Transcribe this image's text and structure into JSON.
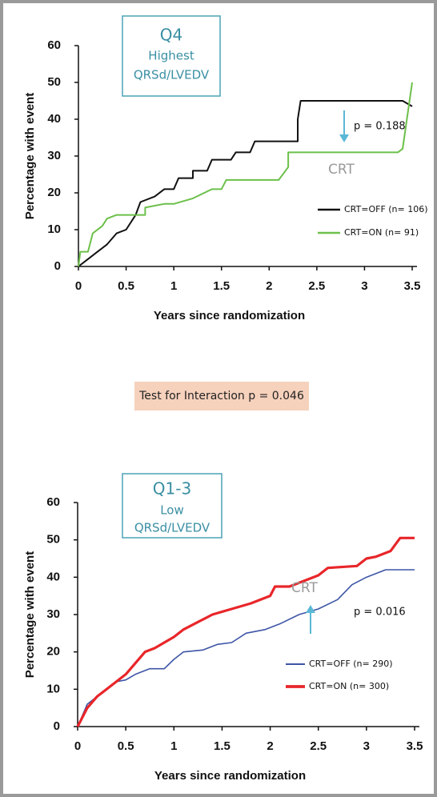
{
  "chart_data": [
    {
      "type": "line",
      "title_box": [
        "Q4",
        "Highest",
        "QRSd/LVEDV"
      ],
      "x_label": "Years since randomization",
      "y_label": "Percentage with event",
      "xlim": [
        0,
        3.5
      ],
      "ylim": [
        0,
        60
      ],
      "xticks": [
        0,
        0.5,
        1,
        1.5,
        2,
        2.5,
        3,
        3.5
      ],
      "yticks": [
        0,
        10,
        20,
        30,
        40,
        50,
        60
      ],
      "annotations": [
        "p = 0.188",
        "CRT"
      ],
      "series": [
        {
          "name": "CRT=OFF (n= 106)",
          "color": "#111111",
          "x": [
            0,
            0.1,
            0.2,
            0.3,
            0.4,
            0.5,
            0.6,
            0.65,
            0.8,
            0.9,
            1.0,
            1.05,
            1.2,
            1.2,
            1.35,
            1.4,
            1.6,
            1.65,
            1.8,
            1.85,
            2.3,
            2.3,
            2.33,
            3.4,
            3.5
          ],
          "values": [
            0,
            2,
            4,
            6,
            9,
            10,
            14,
            17.5,
            19,
            21,
            21,
            24,
            24,
            26,
            26,
            29,
            29,
            31,
            31,
            34,
            34,
            40,
            45,
            45,
            43.5
          ]
        },
        {
          "name": "CRT=ON (n= 91)",
          "color": "#6cc04a",
          "x": [
            0,
            0.02,
            0.1,
            0.15,
            0.25,
            0.3,
            0.4,
            0.7,
            0.7,
            0.9,
            1.0,
            1.2,
            1.4,
            1.5,
            1.55,
            2.1,
            2.2,
            2.2,
            3.35,
            3.4,
            3.5
          ],
          "values": [
            0,
            4,
            4,
            9,
            11,
            13,
            14,
            14,
            16,
            17,
            17,
            18.5,
            21,
            21,
            23.5,
            23.5,
            27,
            31,
            31,
            32,
            50
          ]
        }
      ]
    },
    {
      "type": "line",
      "title_box": [
        "Q1-3",
        "Low",
        "QRSd/LVEDV"
      ],
      "x_label": "Years since randomization",
      "y_label": "Percentage with event",
      "xlim": [
        0,
        3.5
      ],
      "ylim": [
        0,
        60
      ],
      "xticks": [
        0,
        0.5,
        1,
        1.5,
        2,
        2.5,
        3,
        3.5
      ],
      "yticks": [
        0,
        10,
        20,
        30,
        40,
        50,
        60
      ],
      "annotations": [
        "CRT",
        "p = 0.016"
      ],
      "series": [
        {
          "name": "CRT=OFF (n= 290)",
          "color": "#3d55a6",
          "x": [
            0,
            0.1,
            0.2,
            0.3,
            0.4,
            0.5,
            0.6,
            0.75,
            0.9,
            1.0,
            1.1,
            1.3,
            1.45,
            1.6,
            1.75,
            1.95,
            2.1,
            2.3,
            2.5,
            2.7,
            2.85,
            3.0,
            3.2,
            3.5
          ],
          "values": [
            0,
            6,
            8,
            10,
            12,
            12.5,
            14,
            15.5,
            15.5,
            18,
            20,
            20.5,
            22,
            22.5,
            25,
            26,
            27.5,
            30,
            31.5,
            34,
            38,
            40,
            42,
            42
          ]
        },
        {
          "name": "CRT=ON (n= 300)",
          "color": "#e8262a",
          "x": [
            0,
            0.1,
            0.2,
            0.3,
            0.4,
            0.5,
            0.6,
            0.7,
            0.8,
            0.9,
            1.0,
            1.1,
            1.25,
            1.4,
            1.6,
            1.8,
            2.0,
            2.05,
            2.2,
            2.35,
            2.5,
            2.6,
            2.9,
            3.0,
            3.1,
            3.25,
            3.35,
            3.5
          ],
          "values": [
            0,
            5,
            8,
            10,
            12,
            14,
            17,
            20,
            21,
            22.5,
            24,
            26,
            28,
            30,
            31.5,
            33,
            35,
            37.5,
            37.5,
            39,
            40.5,
            42.5,
            43,
            45,
            45.5,
            47,
            50.5,
            50.5
          ]
        }
      ]
    }
  ],
  "interaction_note": "Test for Interaction p = 0.046"
}
